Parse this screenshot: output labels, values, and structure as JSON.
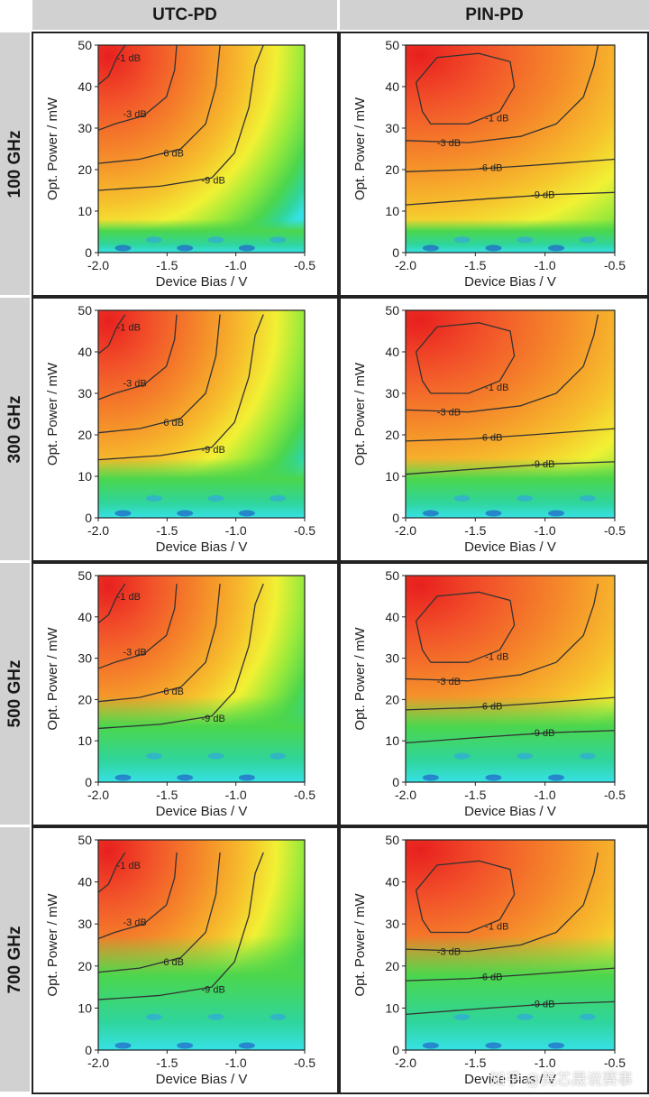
{
  "headers": {
    "columns": [
      "UTC-PD",
      "PIN-PD"
    ],
    "rows": [
      "100 GHz",
      "300 GHz",
      "500 GHz",
      "700 GHz"
    ]
  },
  "watermark": "知乎 @美芯晟说赛事",
  "colors": {
    "header_bg": "#d1d1d1",
    "contour_line": "#333333",
    "colormap": [
      "#1a3fc4",
      "#2f9df2",
      "#36e1e6",
      "#2fd59b",
      "#4bd64d",
      "#9bea3a",
      "#f1f134",
      "#f6c12c",
      "#f58a2a",
      "#f2532a",
      "#e8201f"
    ]
  },
  "chart_data": [
    {
      "type": "heatmap",
      "device": "UTC-PD",
      "frequency": "100 GHz",
      "xlabel": "Device Bias / V",
      "ylabel": "Opt. Power / mW",
      "xlim": [
        -2.0,
        -0.5
      ],
      "ylim": [
        0,
        50
      ],
      "xticks": [
        "-2.0",
        "-1.5",
        "-1.0",
        "-0.5"
      ],
      "yticks": [
        "0",
        "10",
        "20",
        "30",
        "40",
        "50"
      ],
      "contours": [
        {
          "label": "-1 dB",
          "level": -1
        },
        {
          "label": "-3 dB",
          "level": -3
        },
        {
          "label": "-6 dB",
          "level": -6
        },
        {
          "label": "-9 dB",
          "level": -9
        }
      ]
    },
    {
      "type": "heatmap",
      "device": "PIN-PD",
      "frequency": "100 GHz",
      "xlabel": "Device Bias / V",
      "ylabel": "Opt. Power / mW",
      "xlim": [
        -2.0,
        -0.5
      ],
      "ylim": [
        0,
        50
      ],
      "xticks": [
        "-2.0",
        "-1.5",
        "-1.0",
        "-0.5"
      ],
      "yticks": [
        "0",
        "10",
        "20",
        "30",
        "40",
        "50"
      ],
      "contours": [
        {
          "label": "-1 dB",
          "level": -1
        },
        {
          "label": "-3 dB",
          "level": -3
        },
        {
          "label": "-6 dB",
          "level": -6
        },
        {
          "label": "-9 dB",
          "level": -9
        }
      ]
    },
    {
      "type": "heatmap",
      "device": "UTC-PD",
      "frequency": "300 GHz",
      "xlabel": "Device Bias / V",
      "ylabel": "Opt. Power / mW",
      "xlim": [
        -2.0,
        -0.5
      ],
      "ylim": [
        0,
        50
      ],
      "xticks": [
        "-2.0",
        "-1.5",
        "-1.0",
        "-0.5"
      ],
      "yticks": [
        "0",
        "10",
        "20",
        "30",
        "40",
        "50"
      ],
      "contours": [
        {
          "label": "-1 dB",
          "level": -1
        },
        {
          "label": "-3 dB",
          "level": -3
        },
        {
          "label": "-6 dB",
          "level": -6
        },
        {
          "label": "-9 dB",
          "level": -9
        }
      ]
    },
    {
      "type": "heatmap",
      "device": "PIN-PD",
      "frequency": "300 GHz",
      "xlabel": "Device Bias / V",
      "ylabel": "Opt. Power / mW",
      "xlim": [
        -2.0,
        -0.5
      ],
      "ylim": [
        0,
        50
      ],
      "xticks": [
        "-2.0",
        "-1.5",
        "-1.0",
        "-0.5"
      ],
      "yticks": [
        "0",
        "10",
        "20",
        "30",
        "40",
        "50"
      ],
      "contours": [
        {
          "label": "-1 dB",
          "level": -1
        },
        {
          "label": "-3 dB",
          "level": -3
        },
        {
          "label": "-6 dB",
          "level": -6
        },
        {
          "label": "-9 dB",
          "level": -9
        }
      ]
    },
    {
      "type": "heatmap",
      "device": "UTC-PD",
      "frequency": "500 GHz",
      "xlabel": "Device Bias / V",
      "ylabel": "Opt. Power / mW",
      "xlim": [
        -2.0,
        -0.5
      ],
      "ylim": [
        0,
        50
      ],
      "xticks": [
        "-2.0",
        "-1.5",
        "-1.0",
        "-0.5"
      ],
      "yticks": [
        "0",
        "10",
        "20",
        "30",
        "40",
        "50"
      ],
      "contours": [
        {
          "label": "-1 dB",
          "level": -1
        },
        {
          "label": "-3 dB",
          "level": -3
        },
        {
          "label": "-6 dB",
          "level": -6
        },
        {
          "label": "-9 dB",
          "level": -9
        }
      ]
    },
    {
      "type": "heatmap",
      "device": "PIN-PD",
      "frequency": "500 GHz",
      "xlabel": "Device Bias / V",
      "ylabel": "Opt. Power / mW",
      "xlim": [
        -2.0,
        -0.5
      ],
      "ylim": [
        0,
        50
      ],
      "xticks": [
        "-2.0",
        "-1.5",
        "-1.0",
        "-0.5"
      ],
      "yticks": [
        "0",
        "10",
        "20",
        "30",
        "40",
        "50"
      ],
      "contours": [
        {
          "label": "-1 dB",
          "level": -1
        },
        {
          "label": "-3 dB",
          "level": -3
        },
        {
          "label": "-6 dB",
          "level": -6
        },
        {
          "label": "-9 dB",
          "level": -9
        }
      ]
    },
    {
      "type": "heatmap",
      "device": "UTC-PD",
      "frequency": "700 GHz",
      "xlabel": "Device Bias / V",
      "ylabel": "Opt. Power / mW",
      "xlim": [
        -2.0,
        -0.5
      ],
      "ylim": [
        0,
        50
      ],
      "xticks": [
        "-2.0",
        "-1.5",
        "-1.0",
        "-0.5"
      ],
      "yticks": [
        "0",
        "10",
        "20",
        "30",
        "40",
        "50"
      ],
      "contours": [
        {
          "label": "-1 dB",
          "level": -1
        },
        {
          "label": "-3 dB",
          "level": -3
        },
        {
          "label": "-6 dB",
          "level": -6
        },
        {
          "label": "-9 dB",
          "level": -9
        }
      ]
    },
    {
      "type": "heatmap",
      "device": "PIN-PD",
      "frequency": "700 GHz",
      "xlabel": "Device Bias / V",
      "ylabel": "Opt. Power / mW",
      "xlim": [
        -2.0,
        -0.5
      ],
      "ylim": [
        0,
        50
      ],
      "xticks": [
        "-2.0",
        "-1.5",
        "-1.0",
        "-0.5"
      ],
      "yticks": [
        "0",
        "10",
        "20",
        "30",
        "40",
        "50"
      ],
      "contours": [
        {
          "label": "-1 dB",
          "level": -1
        },
        {
          "label": "-3 dB",
          "level": -3
        },
        {
          "label": "-6 dB",
          "level": -6
        },
        {
          "label": "-9 dB",
          "level": -9
        }
      ]
    }
  ]
}
